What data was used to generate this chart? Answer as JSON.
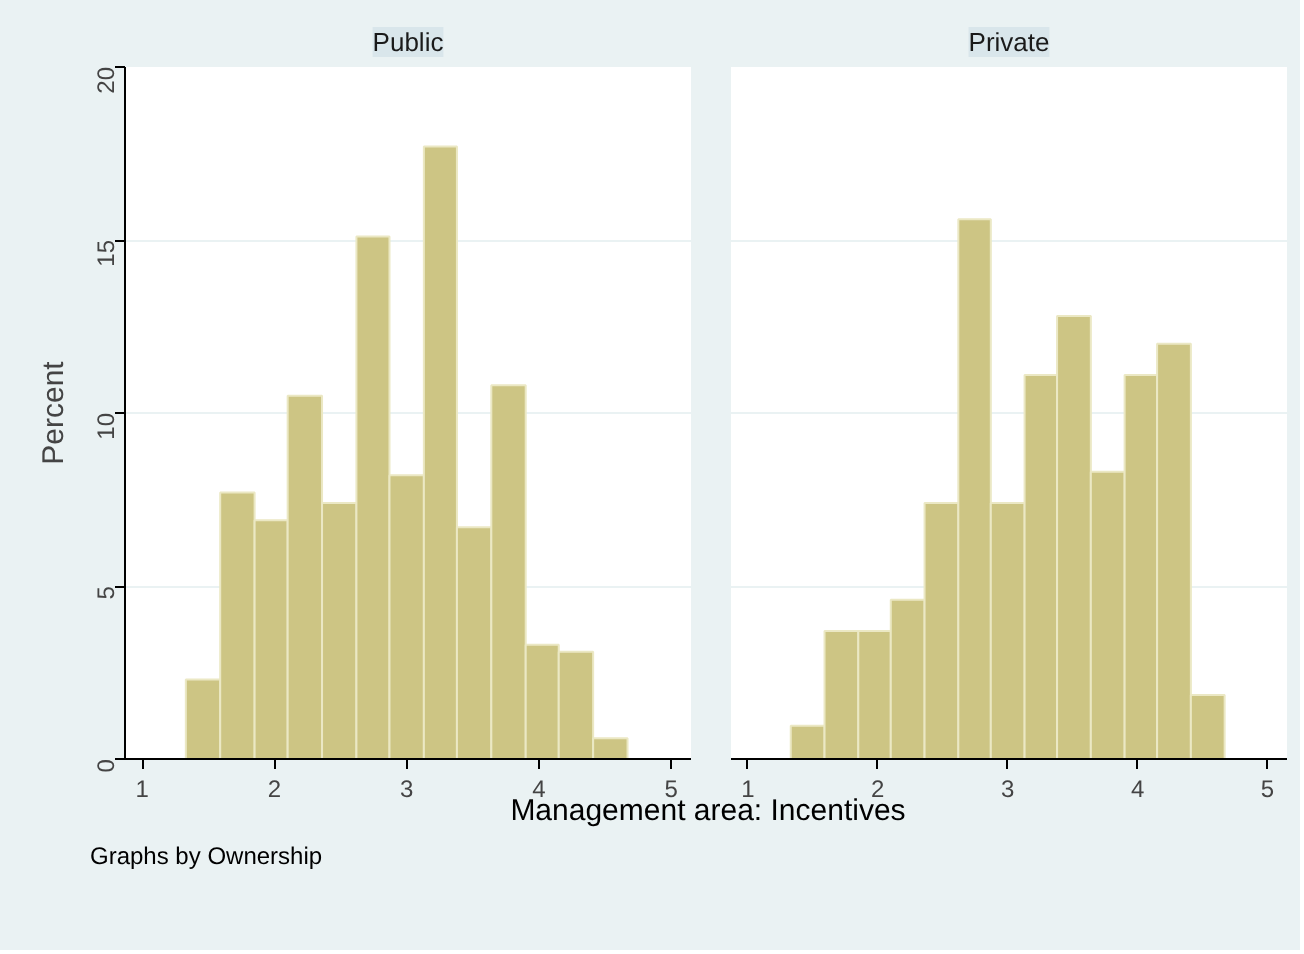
{
  "chart_data": [
    {
      "type": "histogram",
      "title": "Public",
      "ylabel": "Percent",
      "xlabel": "Management area: Incentives",
      "bins": [
        1.33,
        1.59,
        1.85,
        2.1,
        2.36,
        2.62,
        2.87,
        3.13,
        3.38,
        3.64,
        3.9,
        4.15,
        4.41,
        4.67
      ],
      "values": [
        2.3,
        7.7,
        6.9,
        10.5,
        7.4,
        15.1,
        8.2,
        17.7,
        6.7,
        10.8,
        3.3,
        3.1,
        0.6
      ],
      "color": "#cdc584",
      "xlim": [
        0.87,
        5.15
      ],
      "ylim": [
        0,
        20
      ],
      "xticks": [
        1,
        2,
        3,
        4,
        5
      ],
      "yticks": [
        0,
        5,
        10,
        15,
        20
      ],
      "grid": "y",
      "annotations": [
        "Graphs by Ownership"
      ]
    },
    {
      "type": "histogram",
      "title": "Private",
      "bins": [
        1.33,
        1.59,
        1.85,
        2.1,
        2.36,
        2.62,
        2.87,
        3.13,
        3.38,
        3.64,
        3.9,
        4.15,
        4.41,
        4.67
      ],
      "values": [
        0.96,
        3.7,
        3.7,
        4.6,
        7.4,
        15.6,
        7.4,
        11.1,
        12.8,
        8.3,
        11.1,
        12.0,
        1.85
      ],
      "color": "#cdc584",
      "xlim": [
        0.87,
        5.15
      ],
      "ylim": [
        0,
        20
      ],
      "xticks": [
        1,
        2,
        3,
        4,
        5
      ],
      "yticks": [
        0,
        5,
        10,
        15,
        20
      ],
      "grid": "y",
      "tick_labels": "x"
    }
  ]
}
